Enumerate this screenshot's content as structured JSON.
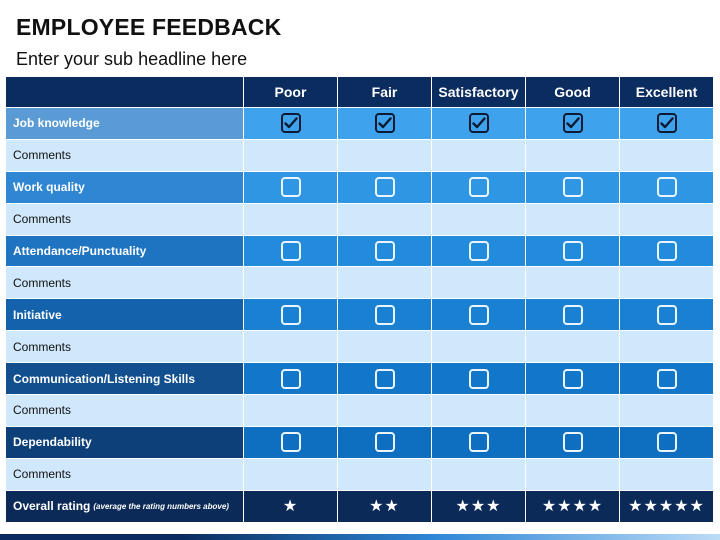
{
  "title": "EMPLOYEE FEEDBACK",
  "subtitle": "Enter your sub headline here",
  "columns": [
    "Poor",
    "Fair",
    "Satisfactory",
    "Good",
    "Excellent"
  ],
  "comments_label": "Comments",
  "criteria": [
    {
      "label": "Job knowledge",
      "color": "#5b9bd5",
      "checked": true
    },
    {
      "label": "Work quality",
      "color": "#2f86d3",
      "checked": false
    },
    {
      "label": "Attendance/Punctuality",
      "color": "#1f74c2",
      "checked": false
    },
    {
      "label": "Initiative",
      "color": "#1562ac",
      "checked": false
    },
    {
      "label": "Communication/Listening Skills",
      "color": "#114f8f",
      "checked": false
    },
    {
      "label": "Dependability",
      "color": "#0d3f78",
      "checked": false
    }
  ],
  "cell_colors": [
    "#3ea3ec",
    "#2f96e4",
    "#238bdb",
    "#1a80d2",
    "#1277c9",
    "#0e6ec0"
  ],
  "overall": {
    "label": "Overall rating",
    "note": "(average the rating numbers above)",
    "stars": [
      "★",
      "★★",
      "★★★",
      "★★★★",
      "★★★★★"
    ]
  },
  "icons": {
    "check": "check-icon",
    "box": "checkbox-icon",
    "star": "star-icon"
  }
}
